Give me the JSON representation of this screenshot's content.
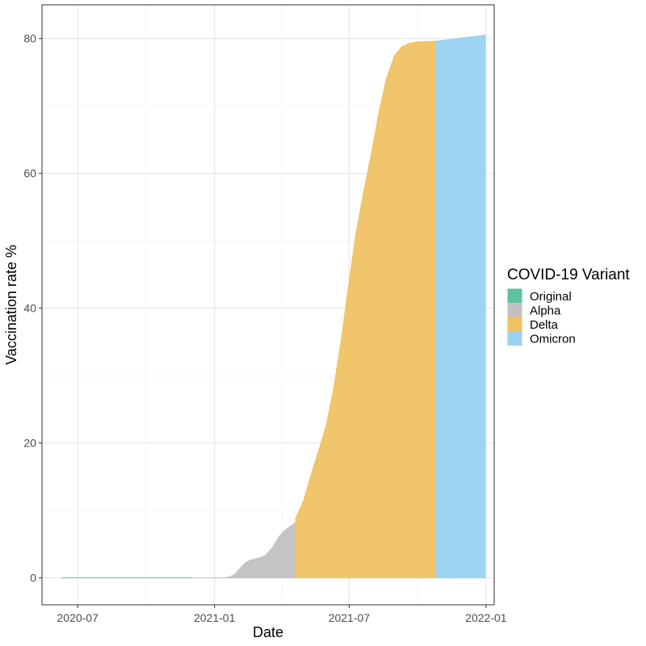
{
  "chart_data": {
    "type": "area",
    "title": "",
    "xlabel": "Date",
    "ylabel": "Vaccination rate %",
    "xlim": [
      "2020-05-14",
      "2022-01-12"
    ],
    "ylim": [
      -4,
      85
    ],
    "x_ticks": [
      {
        "date": "2020-07-01",
        "label": "2020-07"
      },
      {
        "date": "2021-01-01",
        "label": "2021-01"
      },
      {
        "date": "2021-07-01",
        "label": "2021-07"
      },
      {
        "date": "2022-01-01",
        "label": "2022-01"
      }
    ],
    "y_ticks": [
      0,
      20,
      40,
      60,
      80
    ],
    "grid": true,
    "legend": {
      "title": "COVID-19 Variant",
      "position": "right"
    },
    "series": [
      {
        "name": "Original",
        "color": "#5cc2a0",
        "points": [
          [
            "2020-06-09",
            0.0
          ],
          [
            "2020-12-01",
            0.0
          ]
        ]
      },
      {
        "name": "Alpha",
        "color": "#c1c1c1",
        "points": [
          [
            "2020-12-01",
            0.0
          ],
          [
            "2020-12-20",
            0.0
          ],
          [
            "2021-01-10",
            0.0
          ],
          [
            "2021-01-20",
            0.1
          ],
          [
            "2021-01-28",
            0.5
          ],
          [
            "2021-02-05",
            1.5
          ],
          [
            "2021-02-12",
            2.3
          ],
          [
            "2021-02-20",
            2.7
          ],
          [
            "2021-03-01",
            2.9
          ],
          [
            "2021-03-10",
            3.3
          ],
          [
            "2021-03-20",
            4.5
          ],
          [
            "2021-03-28",
            6.0
          ],
          [
            "2021-04-05",
            7.0
          ],
          [
            "2021-04-14",
            7.7
          ],
          [
            "2021-04-20",
            8.2
          ]
        ]
      },
      {
        "name": "Delta",
        "color": "#efc263",
        "points": [
          [
            "2021-04-20",
            8.8
          ],
          [
            "2021-05-01",
            11.5
          ],
          [
            "2021-05-10",
            15.0
          ],
          [
            "2021-05-20",
            18.5
          ],
          [
            "2021-05-31",
            22.5
          ],
          [
            "2021-06-10",
            28.0
          ],
          [
            "2021-06-20",
            35.0
          ],
          [
            "2021-07-01",
            44.0
          ],
          [
            "2021-07-10",
            51.0
          ],
          [
            "2021-07-20",
            57.0
          ],
          [
            "2021-07-31",
            63.0
          ],
          [
            "2021-08-10",
            69.0
          ],
          [
            "2021-08-20",
            74.0
          ],
          [
            "2021-08-31",
            77.5
          ],
          [
            "2021-09-10",
            78.8
          ],
          [
            "2021-09-20",
            79.3
          ],
          [
            "2021-10-01",
            79.5
          ],
          [
            "2021-10-26",
            79.6
          ]
        ]
      },
      {
        "name": "Omicron",
        "color": "#9ad2f1",
        "points": [
          [
            "2021-10-26",
            79.6
          ],
          [
            "2021-11-15",
            79.9
          ],
          [
            "2021-12-01",
            80.1
          ],
          [
            "2021-12-15",
            80.3
          ],
          [
            "2021-12-31",
            80.5
          ]
        ]
      }
    ]
  }
}
